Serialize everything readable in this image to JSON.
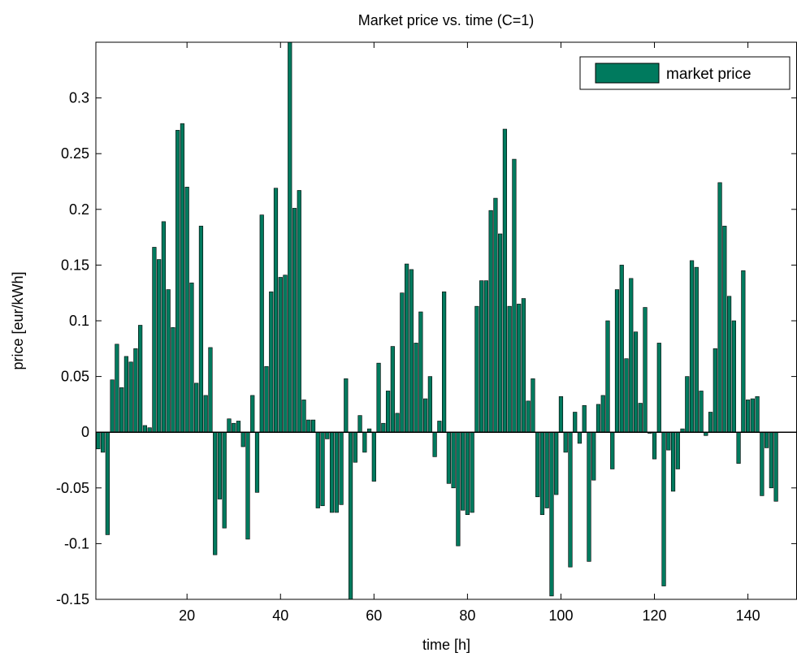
{
  "chart_data": {
    "type": "bar",
    "title": "Market price vs. time (C=1)",
    "xlabel": "time [h]",
    "ylabel": "price [eur/kWh]",
    "xlim": [
      0.5,
      150.5
    ],
    "ylim": [
      -0.15,
      0.35
    ],
    "xticks": [
      20,
      40,
      60,
      80,
      100,
      120,
      140
    ],
    "yticks": [
      -0.15,
      -0.1,
      -0.05,
      0,
      0.05,
      0.1,
      0.15,
      0.2,
      0.25,
      0.3
    ],
    "ytick_labels": [
      "-0.15",
      "-0.1",
      "-0.05",
      "0",
      "0.05",
      "0.1",
      "0.15",
      "0.2",
      "0.25",
      "0.3"
    ],
    "legend": {
      "labels": [
        "market price"
      ],
      "position": "top-right"
    },
    "grid": false,
    "bar_color": "#007a5e",
    "x_start": 1,
    "series": [
      {
        "name": "market price",
        "values": [
          -0.015,
          -0.018,
          -0.092,
          0.047,
          0.079,
          0.04,
          0.068,
          0.063,
          0.075,
          0.096,
          0.006,
          0.004,
          0.166,
          0.155,
          0.189,
          0.128,
          0.094,
          0.271,
          0.277,
          0.22,
          0.134,
          0.044,
          0.185,
          0.033,
          0.076,
          -0.11,
          -0.06,
          -0.086,
          0.012,
          0.008,
          0.01,
          -0.013,
          -0.096,
          0.033,
          -0.054,
          0.195,
          0.059,
          0.126,
          0.219,
          0.139,
          0.141,
          0.35,
          0.201,
          0.217,
          0.029,
          0.011,
          0.011,
          -0.068,
          -0.066,
          -0.006,
          -0.072,
          -0.072,
          -0.065,
          0.048,
          -0.15,
          -0.027,
          0.015,
          -0.018,
          0.003,
          -0.044,
          0.062,
          0.008,
          0.037,
          0.077,
          0.017,
          0.125,
          0.151,
          0.146,
          0.08,
          0.108,
          0.03,
          0.05,
          -0.022,
          0.01,
          0.126,
          -0.046,
          -0.05,
          -0.102,
          -0.07,
          -0.074,
          -0.072,
          0.113,
          0.136,
          0.136,
          0.199,
          0.21,
          0.178,
          0.272,
          0.113,
          0.245,
          0.115,
          0.12,
          0.028,
          0.048,
          -0.058,
          -0.074,
          -0.068,
          -0.147,
          -0.056,
          0.032,
          -0.018,
          -0.121,
          0.018,
          -0.01,
          0.024,
          -0.116,
          -0.043,
          0.025,
          0.033,
          0.1,
          -0.033,
          0.128,
          0.15,
          0.066,
          0.138,
          0.09,
          0.026,
          0.112,
          -0.001,
          -0.024,
          0.08,
          -0.138,
          -0.016,
          -0.053,
          -0.033,
          0.003,
          0.05,
          0.154,
          0.148,
          0.037,
          -0.003,
          0.018,
          0.075,
          0.224,
          0.185,
          0.122,
          0.1,
          -0.028,
          0.145,
          0.029,
          0.03,
          0.032,
          -0.057,
          -0.014,
          -0.05,
          -0.062
        ]
      }
    ]
  }
}
